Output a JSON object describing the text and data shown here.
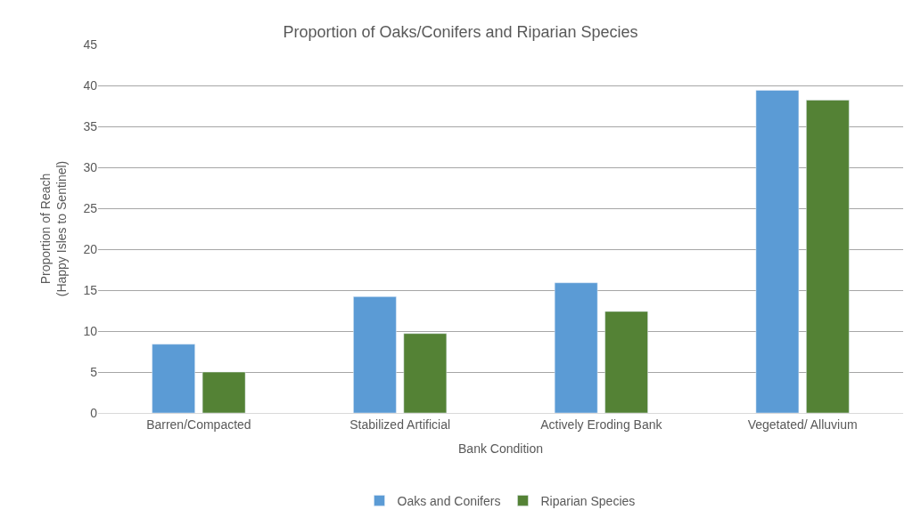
{
  "chart_data": {
    "type": "bar",
    "title": "Proportion of Oaks/Conifers and Riparian Species",
    "xlabel": "Bank Condition",
    "ylabel": "Proportion of Reach\n(Happy Isles to Sentinel)",
    "categories": [
      "Barren/Compacted",
      "Stabilized Artificial",
      "Actively Eroding Bank",
      "Vegetated/ Alluvium"
    ],
    "series": [
      {
        "name": "Oaks and Conifers",
        "color": "#5b9bd5",
        "values": [
          8.4,
          14.2,
          15.9,
          39.4
        ]
      },
      {
        "name": "Riparian Species",
        "color": "#548235",
        "values": [
          5.0,
          9.7,
          12.4,
          38.2
        ]
      }
    ],
    "ylim": [
      0,
      45
    ],
    "yticks": [
      0,
      5,
      10,
      15,
      20,
      25,
      30,
      35,
      40,
      45
    ],
    "grid": "y",
    "legend": "bottom"
  }
}
